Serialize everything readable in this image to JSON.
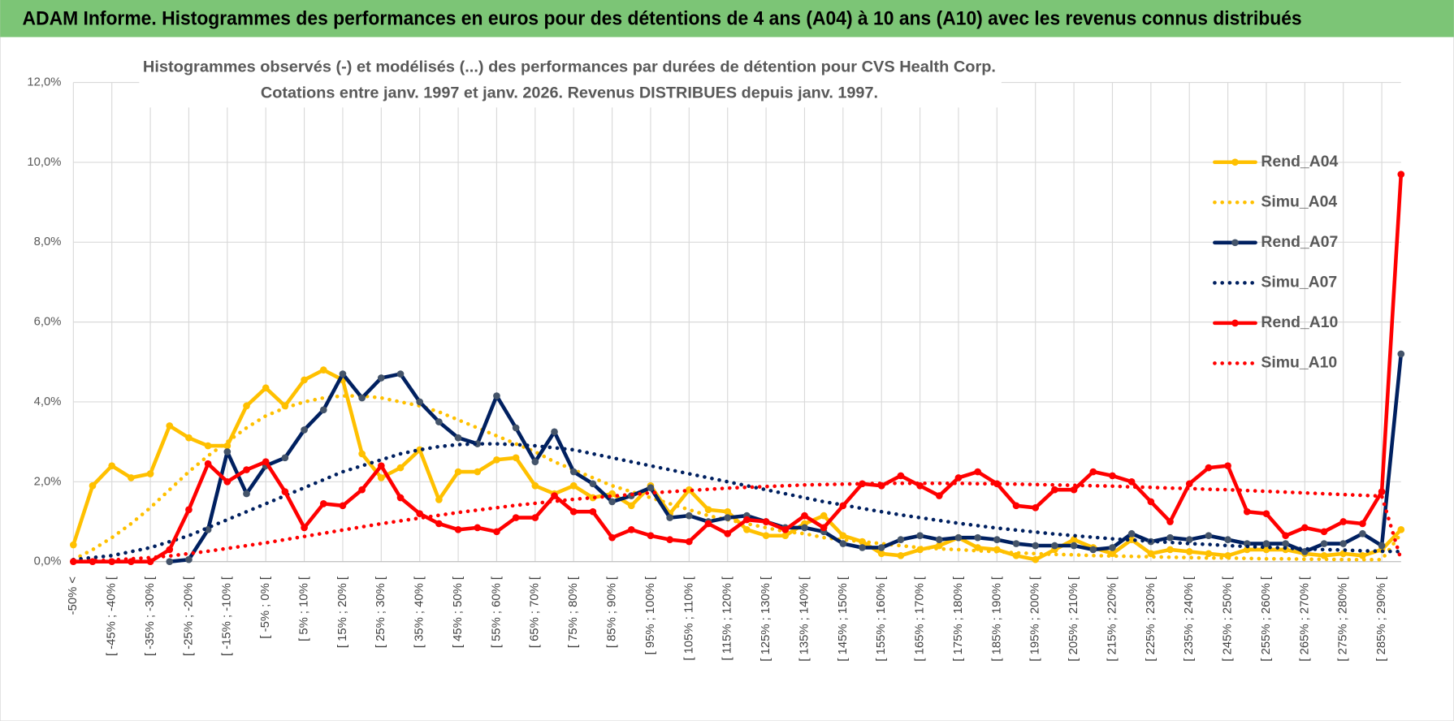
{
  "header": "ADAM Informe. Histogrammes des performances en euros pour des détentions de 4 ans (A04) à 10 ans (A10) avec les revenus connus distribués",
  "chart_data": {
    "type": "line",
    "title": "Histogrammes observés (-) et modélisés (...) des performances par durées de détention pour CVS Health Corp.",
    "subtitle": "Cotations entre janv. 1997 et janv. 2026. Revenus DISTRIBUES depuis janv. 1997.",
    "categories": [
      "-50% <",
      null,
      "[ -45% ; -40% [",
      null,
      "[ -35% ; -30% [",
      null,
      "[ -25% ; -20% [",
      null,
      "[ -15% ; -10% [",
      null,
      "[ -5% ; 0% [",
      null,
      "[ 5% ; 10% [",
      null,
      "[ 15% ; 20% [",
      null,
      "[ 25% ; 30% [",
      null,
      "[ 35% ; 40% [",
      null,
      "[ 45% ; 50% [",
      null,
      "[ 55% ; 60% [",
      null,
      "[ 65% ; 70% [",
      null,
      "[ 75% ; 80% [",
      null,
      "[ 85% ; 90% [",
      null,
      "[ 95% ; 100% [",
      null,
      "[ 105% ; 110% [",
      null,
      "[ 115% ; 120% [",
      null,
      "[ 125% ; 130% [",
      null,
      "[ 135% ; 140% [",
      null,
      "[ 145% ; 150% [",
      null,
      "[ 155% ; 160% [",
      null,
      "[ 165% ; 170% [",
      null,
      "[ 175% ; 180% [",
      null,
      "[ 185% ; 190% [",
      null,
      "[ 195% ; 200% [",
      null,
      "[ 205% ; 210% [",
      null,
      "[ 215% ; 220% [",
      null,
      "[ 225% ; 230% [",
      null,
      "[ 235% ; 240% [",
      null,
      "[ 245% ; 250% [",
      null,
      "[ 255% ; 260% [",
      null,
      "[ 265% ; 270% [",
      null,
      "[ 275% ; 280% [",
      null,
      "[ 285% ; 290% [",
      null
    ],
    "series": [
      {
        "name": "Rend_A04",
        "color": "#ffc000",
        "line_style": "solid",
        "marker_color": "#ffc000",
        "values": [
          0.42,
          1.9,
          2.4,
          2.1,
          2.2,
          3.4,
          3.1,
          2.9,
          2.9,
          3.9,
          4.35,
          3.9,
          4.55,
          4.8,
          4.55,
          2.7,
          2.1,
          2.35,
          2.8,
          1.55,
          2.25,
          2.25,
          2.55,
          2.6,
          1.9,
          1.7,
          1.9,
          1.6,
          1.7,
          1.4,
          1.9,
          1.2,
          1.8,
          1.3,
          1.25,
          0.8,
          0.65,
          0.65,
          0.95,
          1.15,
          0.65,
          0.5,
          0.2,
          0.15,
          0.3,
          0.4,
          0.6,
          0.35,
          0.3,
          0.15,
          0.05,
          0.3,
          0.55,
          0.35,
          0.2,
          0.55,
          0.2,
          0.3,
          0.25,
          0.2,
          0.15,
          0.3,
          0.3,
          0.3,
          0.2,
          0.15,
          0.2,
          0.15,
          0.3,
          0.8
        ]
      },
      {
        "name": "Simu_A04",
        "color": "#ffc000",
        "line_style": "dotted",
        "values": [
          0.05,
          0.3,
          0.6,
          0.95,
          1.35,
          1.8,
          2.25,
          2.65,
          3.0,
          3.35,
          3.65,
          3.85,
          4.0,
          4.1,
          4.15,
          4.15,
          4.1,
          4.0,
          3.9,
          3.75,
          3.55,
          3.35,
          3.15,
          2.95,
          2.75,
          2.5,
          2.3,
          2.1,
          1.9,
          1.75,
          1.6,
          1.45,
          1.3,
          1.15,
          1.05,
          0.95,
          0.85,
          0.75,
          0.7,
          0.6,
          0.55,
          0.5,
          0.45,
          0.4,
          0.35,
          0.32,
          0.3,
          0.27,
          0.25,
          0.22,
          0.2,
          0.18,
          0.17,
          0.15,
          0.14,
          0.13,
          0.12,
          0.11,
          0.1,
          0.09,
          0.09,
          0.08,
          0.07,
          0.07,
          0.06,
          0.06,
          0.05,
          0.05,
          0.05,
          0.7
        ]
      },
      {
        "name": "Rend_A07",
        "color": "#002060",
        "line_style": "solid",
        "marker_color": "#44546a",
        "values": [
          null,
          null,
          null,
          null,
          null,
          0,
          0.05,
          0.8,
          2.75,
          1.7,
          2.4,
          2.6,
          3.3,
          3.8,
          4.7,
          4.1,
          4.6,
          4.7,
          4.0,
          3.5,
          3.1,
          2.95,
          4.15,
          3.35,
          2.5,
          3.25,
          2.25,
          1.95,
          1.5,
          1.65,
          1.85,
          1.1,
          1.15,
          1.0,
          1.1,
          1.15,
          1.0,
          0.85,
          0.85,
          0.75,
          0.45,
          0.35,
          0.35,
          0.55,
          0.65,
          0.55,
          0.6,
          0.6,
          0.55,
          0.45,
          0.4,
          0.4,
          0.4,
          0.3,
          0.35,
          0.7,
          0.5,
          0.6,
          0.55,
          0.65,
          0.55,
          0.45,
          0.45,
          0.45,
          0.25,
          0.45,
          0.45,
          0.7,
          0.4,
          5.2
        ]
      },
      {
        "name": "Simu_A07",
        "color": "#002060",
        "line_style": "dotted",
        "values": [
          0.05,
          0.1,
          0.15,
          0.25,
          0.35,
          0.5,
          0.65,
          0.85,
          1.05,
          1.25,
          1.45,
          1.65,
          1.85,
          2.05,
          2.25,
          2.4,
          2.55,
          2.7,
          2.8,
          2.88,
          2.93,
          2.95,
          2.95,
          2.93,
          2.9,
          2.85,
          2.8,
          2.7,
          2.6,
          2.5,
          2.4,
          2.3,
          2.2,
          2.1,
          2.0,
          1.9,
          1.8,
          1.7,
          1.6,
          1.5,
          1.42,
          1.33,
          1.25,
          1.17,
          1.1,
          1.03,
          0.96,
          0.9,
          0.84,
          0.79,
          0.74,
          0.69,
          0.65,
          0.61,
          0.57,
          0.54,
          0.51,
          0.48,
          0.45,
          0.43,
          0.4,
          0.38,
          0.36,
          0.34,
          0.32,
          0.3,
          0.29,
          0.27,
          0.26,
          0.25
        ]
      },
      {
        "name": "Rend_A10",
        "color": "#ff0000",
        "line_style": "solid",
        "marker_color": "#ff0000",
        "values": [
          0,
          0,
          0,
          0,
          0,
          0.3,
          1.3,
          2.45,
          2.0,
          2.3,
          2.5,
          1.75,
          0.85,
          1.45,
          1.4,
          1.8,
          2.4,
          1.6,
          1.2,
          0.95,
          0.8,
          0.85,
          0.75,
          1.1,
          1.1,
          1.65,
          1.25,
          1.25,
          0.6,
          0.8,
          0.65,
          0.55,
          0.5,
          0.95,
          0.7,
          1.05,
          1.0,
          0.8,
          1.15,
          0.85,
          1.4,
          1.95,
          1.9,
          2.15,
          1.9,
          1.65,
          2.1,
          2.25,
          1.95,
          1.4,
          1.35,
          1.8,
          1.8,
          2.25,
          2.15,
          2.0,
          1.5,
          1.0,
          1.95,
          2.35,
          2.4,
          1.25,
          1.2,
          0.65,
          0.85,
          0.75,
          1.0,
          0.95,
          1.75,
          9.7
        ]
      },
      {
        "name": "Simu_A10",
        "color": "#ff0000",
        "line_style": "dotted",
        "values": [
          0,
          0.02,
          0.04,
          0.07,
          0.1,
          0.14,
          0.2,
          0.26,
          0.33,
          0.4,
          0.47,
          0.55,
          0.63,
          0.71,
          0.79,
          0.87,
          0.95,
          1.02,
          1.09,
          1.16,
          1.23,
          1.29,
          1.35,
          1.41,
          1.46,
          1.51,
          1.56,
          1.6,
          1.64,
          1.68,
          1.72,
          1.75,
          1.78,
          1.81,
          1.84,
          1.86,
          1.88,
          1.9,
          1.92,
          1.93,
          1.94,
          1.95,
          1.96,
          1.96,
          1.96,
          1.96,
          1.96,
          1.95,
          1.95,
          1.94,
          1.93,
          1.92,
          1.91,
          1.9,
          1.89,
          1.87,
          1.86,
          1.84,
          1.83,
          1.81,
          1.8,
          1.78,
          1.76,
          1.74,
          1.72,
          1.7,
          1.68,
          1.66,
          1.64,
          0.05
        ]
      }
    ],
    "ylim": [
      0,
      12
    ],
    "yticks": [
      {
        "value": 0,
        "label": "0,0%"
      },
      {
        "value": 2,
        "label": "2,0%"
      },
      {
        "value": 4,
        "label": "4,0%"
      },
      {
        "value": 6,
        "label": "6,0%"
      },
      {
        "value": 8,
        "label": "8,0%"
      },
      {
        "value": 10,
        "label": "10,0%"
      },
      {
        "value": 12,
        "label": "12,0%"
      }
    ],
    "grid": true,
    "legend": "right"
  }
}
